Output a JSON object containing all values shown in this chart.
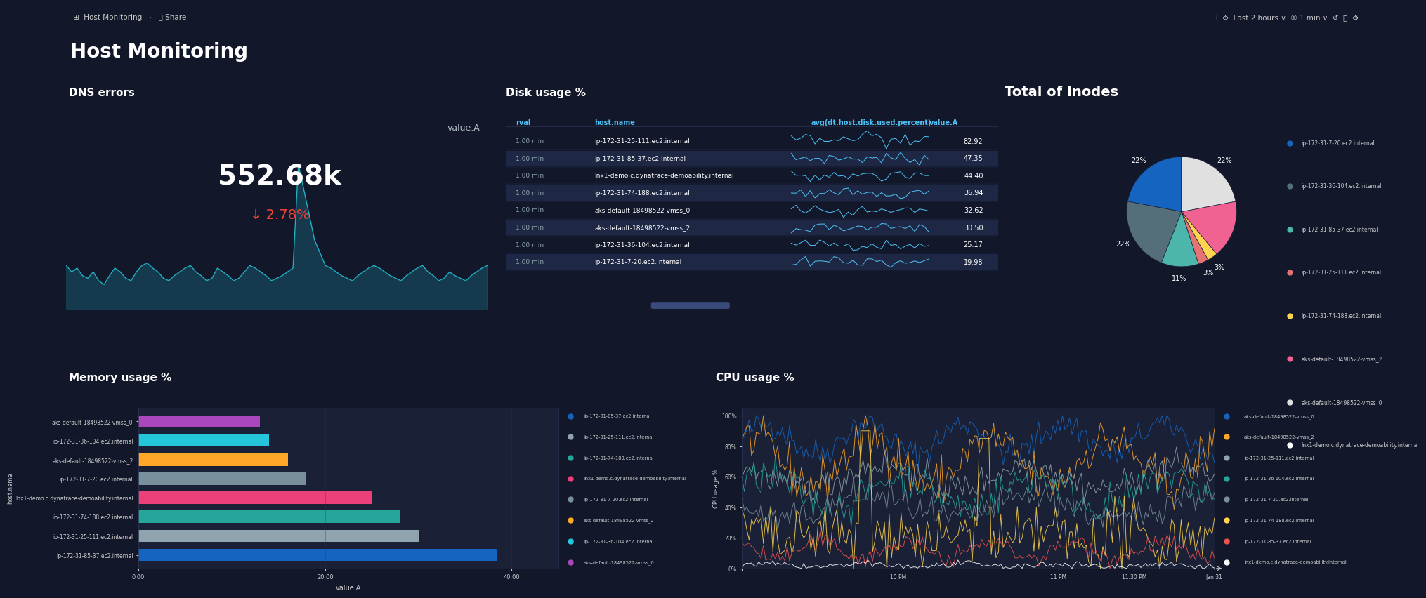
{
  "bg_color": "#12172a",
  "panel_bg": "#1a2035",
  "text_color": "#ffffff",
  "accent_color": "#4fc3f7",
  "title": "Host Monitoring",
  "top_bar_color": "#0d1626",
  "dns_title": "DNS errors",
  "dns_label": "value.A",
  "dns_value": "552.68k",
  "dns_pct": "↓ 2.78%",
  "dns_pct_color": "#f44336",
  "dns_line_color": "#26c6da",
  "dns_line_y": [
    120,
    115,
    118,
    112,
    110,
    115,
    108,
    105,
    112,
    118,
    115,
    110,
    108,
    115,
    120,
    122,
    118,
    115,
    110,
    108,
    112,
    115,
    118,
    120,
    115,
    112,
    108,
    110,
    118,
    115,
    112,
    108,
    110,
    115,
    120,
    118,
    115,
    112,
    108,
    110,
    112,
    115,
    118,
    200,
    180,
    160,
    140,
    130,
    120,
    118,
    115,
    112,
    110,
    108,
    112,
    115,
    118,
    120,
    118,
    115,
    112,
    110,
    108,
    112,
    115,
    118,
    120,
    115,
    112,
    108,
    110,
    115,
    112,
    110,
    108,
    112,
    115,
    118,
    120
  ],
  "disk_title": "Disk usage %",
  "disk_col1": "rval",
  "disk_col2": "host.name",
  "disk_col3": "avg(dt.host.disk.used.percent)",
  "disk_col4": "value.A",
  "disk_rows": [
    {
      "rval": "1.00 min",
      "host": "ip-172-31-25-111.ec2.internal",
      "value": 82.92
    },
    {
      "rval": "1.00 min",
      "host": "ip-172-31-85-37.ec2.internal",
      "value": 47.35
    },
    {
      "rval": "1.00 min",
      "host": "lnx1-demo.c.dynatrace-demoability.internal",
      "value": 44.4
    },
    {
      "rval": "1.00 min",
      "host": "ip-172-31-74-188.ec2.internal",
      "value": 36.94
    },
    {
      "rval": "1.00 min",
      "host": "aks-default-18498522-vmss_0",
      "value": 32.62
    },
    {
      "rval": "1.00 min",
      "host": "aks-default-18498522-vmss_2",
      "value": 30.5
    },
    {
      "rval": "1.00 min",
      "host": "ip-172-31-36-104.ec2.internal",
      "value": 25.17
    },
    {
      "rval": "1.00 min",
      "host": "ip-172-31-7-20.ec2.internal",
      "value": 19.98
    }
  ],
  "disk_sparkline_color": "#4fc3f7",
  "pie_title": "Total of Inodes",
  "pie_labels": [
    "ip-172-31-7-20.ec2.internal",
    "ip-172-31-36-104.ec2.internal",
    "ip-172-31-85-37.ec2.internal",
    "ip-172-31-25-111.ec2.internal",
    "ip-172-31-74-188.ec2.internal",
    "aks-default-18498522-vmss_2",
    "aks-default-18498522-vmss_0",
    "lnx1-demo.c.dynatrace-demoability.internal"
  ],
  "pie_sizes": [
    22,
    22,
    11,
    3,
    3,
    17,
    22,
    0
  ],
  "pie_colors": [
    "#1565c0",
    "#546e7a",
    "#4db6ac",
    "#e57373",
    "#ffd54f",
    "#f06292",
    "#e0e0e0",
    "#ffffff"
  ],
  "pie_pct_labels": [
    "22%",
    "22%",
    "11%",
    "3%",
    "3%",
    "",
    "22%",
    ""
  ],
  "pie_label_positions": [
    "bottom",
    "bottom",
    "left",
    "top",
    "top",
    "right",
    "right",
    "right"
  ],
  "mem_title": "Memory usage %",
  "mem_hosts": [
    "ip-172-31-85-37.ec2.internal",
    "ip-172-31-25-111.ec2.internal",
    "ip-172-31-74-188.ec2.internal",
    "lnx1-demo.c.dynatrace-demoability.internal",
    "ip-172-31-7-20.ec2.internal",
    "aks-default-18498522-vmss_2",
    "ip-172-31-36-104.ec2.internal",
    "aks-default-18498522-vmss_0"
  ],
  "mem_values": [
    38.5,
    30.0,
    28.0,
    25.0,
    18.0,
    16.0,
    14.0,
    13.0
  ],
  "mem_colors": [
    "#1565c0",
    "#90a4ae",
    "#26a69a",
    "#ec407a",
    "#78909c",
    "#ffa726",
    "#26c6da",
    "#ab47bc"
  ],
  "mem_legend_hosts": [
    "ip-172-31-85-37.ec2.internal",
    "ip-172-31-25-111.ec2.internal",
    "ip-172-31-74-188.ec2.internal",
    "lnx1-demo.c.dynatrace-demoability.internal",
    "ip-172-31-7-20.ec2.internal",
    "aks-default-18498522-vmss_2",
    "ip-172-31-36-104.ec2.internal",
    "aks-default-18498522-vmss_0"
  ],
  "cpu_title": "CPU usage %",
  "cpu_legend": [
    "aks-default-18498522-vmss_0",
    "aks-default-18498522-vmss_2",
    "ip-172-31-25-111.ec2.internal",
    "ip-172-31-36-104.ec2.internal",
    "ip-172-31-7-20.ec2.internal",
    "ip-172-31-74-188.ec2.internal",
    "ip-172-31-85-37.ec2.internal",
    "lnx1-demo.c.dynatrace-demoability.internal"
  ],
  "cpu_colors": [
    "#1565c0",
    "#ffa726",
    "#90a4ae",
    "#26a69a",
    "#78909c",
    "#ffd54f",
    "#ef5350",
    "#ffffff"
  ],
  "cpu_xticks": [
    "10 PM",
    "11 PM",
    "11:30 PM",
    "Jan 31"
  ],
  "cpu_yticks": [
    "0%",
    "20%",
    "40%",
    "60%",
    "80%",
    "100%"
  ]
}
